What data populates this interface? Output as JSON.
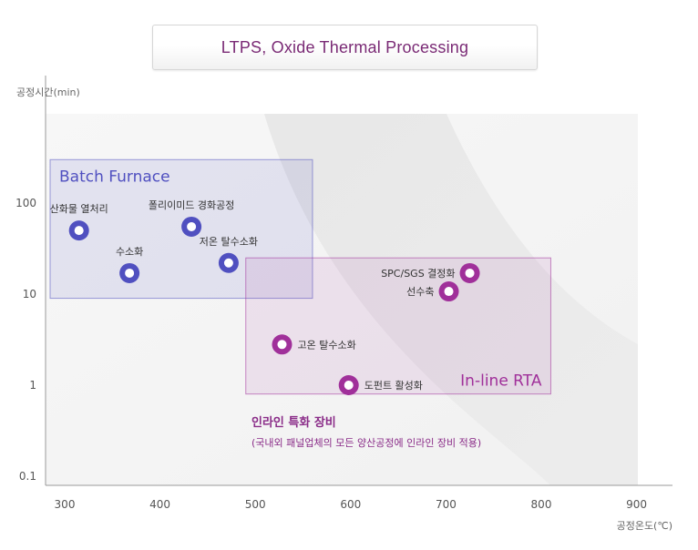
{
  "header": {
    "title": "LTPS, Oxide Thermal Processing"
  },
  "chart_data": {
    "type": "scatter",
    "title": "LTPS, Oxide Thermal Processing",
    "xlabel": "공정온도(℃)",
    "ylabel": "공정시간(min)",
    "xlim": [
      280,
      940
    ],
    "ylim": [
      0.1,
      1000
    ],
    "y_scale": "log",
    "x_ticks": [
      "300",
      "400",
      "500",
      "600",
      "700",
      "800",
      "900"
    ],
    "x_tick_values": [
      300,
      400,
      500,
      600,
      700,
      800,
      900
    ],
    "y_ticks": [
      "0.1",
      "1",
      "10",
      "100"
    ],
    "y_tick_values": [
      0.1,
      1,
      10,
      100
    ],
    "grid": false,
    "groups": [
      {
        "name": "Batch Furnace",
        "color": "#5050c0",
        "x_range": [
          280,
          560
        ],
        "y_range": [
          9,
          300
        ],
        "points": [
          {
            "label": "산화물 열처리",
            "x": 315,
            "y": 50,
            "label_pos": "above"
          },
          {
            "label": "수소화",
            "x": 368,
            "y": 17,
            "label_pos": "above"
          },
          {
            "label": "폴리이미드 경화공정",
            "x": 433,
            "y": 55,
            "label_pos": "above"
          },
          {
            "label": "저온 탈수소화",
            "x": 472,
            "y": 22,
            "label_pos": "above"
          }
        ]
      },
      {
        "name": "In-line RTA",
        "color": "#a0309a",
        "x_range": [
          490,
          810
        ],
        "y_range": [
          0.8,
          25
        ],
        "points": [
          {
            "label": "SPC/SGS 결정화",
            "x": 725,
            "y": 17,
            "label_pos": "left"
          },
          {
            "label": "선수축",
            "x": 703,
            "y": 10.7,
            "label_pos": "left"
          },
          {
            "label": "고온 탈수소화",
            "x": 528,
            "y": 2.8,
            "label_pos": "right"
          },
          {
            "label": "도펀트 활성화",
            "x": 598,
            "y": 1.0,
            "label_pos": "right"
          }
        ]
      }
    ],
    "annotations": {
      "heading": "인라인 특화 장비",
      "subtext": "(국내외 패널업체의 모든 양산공정에 인라인 장비 적용)"
    }
  }
}
